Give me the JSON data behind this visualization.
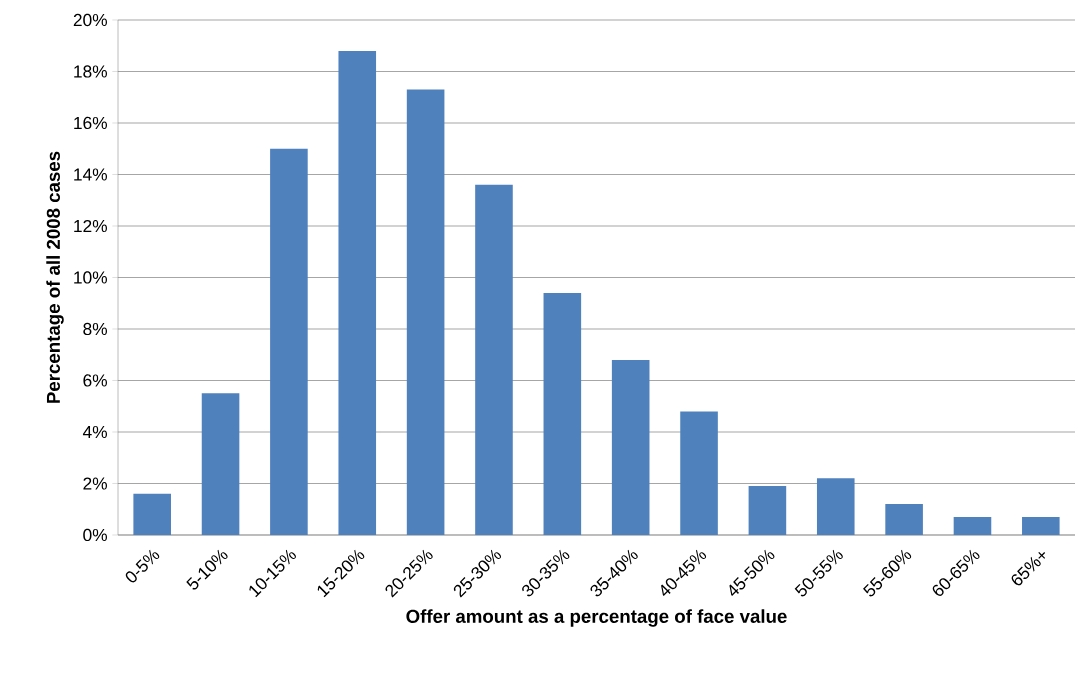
{
  "chart_data": {
    "type": "bar",
    "xlabel": "Offer amount as a percentage of face value",
    "ylabel": "Percentage of all 2008 cases",
    "categories": [
      "0-5%",
      "5-10%",
      "10-15%",
      "15-20%",
      "20-25%",
      "25-30%",
      "30-35%",
      "35-40%",
      "40-45%",
      "45-50%",
      "50-55%",
      "55-60%",
      "60-65%",
      "65%+"
    ],
    "values": [
      1.6,
      5.5,
      15.0,
      18.8,
      17.3,
      13.6,
      9.4,
      6.8,
      4.8,
      1.9,
      2.2,
      1.2,
      0.7,
      0.7
    ],
    "color": "#4f81bd",
    "ylim": [
      0,
      20
    ],
    "yticks": [
      {
        "value": 0,
        "label": "0%"
      },
      {
        "value": 2,
        "label": "2%"
      },
      {
        "value": 4,
        "label": "4%"
      },
      {
        "value": 6,
        "label": "6%"
      },
      {
        "value": 8,
        "label": "8%"
      },
      {
        "value": 10,
        "label": "10%"
      },
      {
        "value": 12,
        "label": "12%"
      },
      {
        "value": 14,
        "label": "14%"
      },
      {
        "value": 16,
        "label": "16%"
      },
      {
        "value": 18,
        "label": "18%"
      },
      {
        "value": 20,
        "label": "20%"
      }
    ],
    "grid": "y"
  }
}
